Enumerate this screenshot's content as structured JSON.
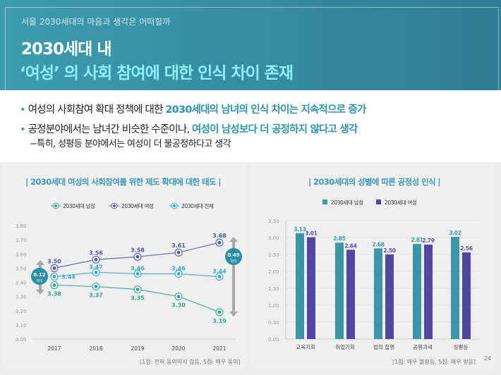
{
  "header": {
    "kicker": "서울 2030세대의 마음과 생각은 어떠할까",
    "title_line1": "2030세대 내",
    "title_line2": "‘여성’ 의 사회 참여에 대한 인식 차이 존재"
  },
  "bullets": [
    {
      "prefix": "여성의 사회참여 확대 정책에 대한 ",
      "highlight": "2030세대의 남녀의 인식 차이는 지속적으로 증가"
    },
    {
      "prefix": "공정분야에서는 남녀간 비슷한 수준이나, ",
      "highlight": "여성이 남성보다 더 공정하지 않다고 생각"
    }
  ],
  "sub_bullet": "−특히, 성평등 분야에서는 여성이 더 불공정하다고 생각",
  "page_number": "24",
  "colors": {
    "teal": "#3a9ab0",
    "male": "#2aa58f",
    "female": "#4a56a0",
    "total": "#33a9c4",
    "bar_male": "#3a96a8",
    "bar_female": "#5048a0"
  },
  "chart_data": [
    {
      "type": "line",
      "title": "| 2030세대 여성의 사회참여를 위한 제도 확대에 대한 태도 |",
      "categories": [
        "2017",
        "2018",
        "2019",
        "2020",
        "2021"
      ],
      "series": [
        {
          "name": "2030세대 남성",
          "values": [
            3.38,
            3.37,
            3.35,
            3.3,
            3.19
          ]
        },
        {
          "name": "2030세대 여성",
          "values": [
            3.5,
            3.56,
            3.58,
            3.61,
            3.68
          ]
        },
        {
          "name": "2030세대 전체",
          "values": [
            3.44,
            3.47,
            3.46,
            3.46,
            3.44
          ]
        }
      ],
      "ylim": [
        3.0,
        3.8
      ],
      "yticks": [
        "3.00",
        "3.10",
        "3.20",
        "3.30",
        "3.40",
        "3.50",
        "3.60",
        "3.70",
        "3.80"
      ],
      "annotations": [
        {
          "value": "0.12",
          "label": "차이"
        },
        {
          "value": "0.49",
          "label": "차이"
        }
      ],
      "legend": "top",
      "note": "[1점: 전혀 동의하지 않음, 5점: 매우 동의]"
    },
    {
      "type": "bar",
      "title": "| 2030세대의 성별에 따른 공정성 인식 |",
      "categories": [
        "교육기회",
        "취업기회",
        "법의 집행",
        "공평과세",
        "성평등"
      ],
      "series": [
        {
          "name": "2030세대 남성",
          "values": [
            3.13,
            2.85,
            2.68,
            2.81,
            3.02
          ]
        },
        {
          "name": "2030세대 여성",
          "values": [
            3.01,
            2.64,
            2.5,
            2.79,
            2.56
          ]
        }
      ],
      "ylim": [
        0,
        3.5
      ],
      "yticks": [
        "0.00",
        "0.50",
        "1.00",
        "1.50",
        "2.00",
        "2.50",
        "3.00",
        "3.50"
      ],
      "legend": "top",
      "note": "[1점: 매우 불평등, 5점: 매우 평등]"
    }
  ]
}
